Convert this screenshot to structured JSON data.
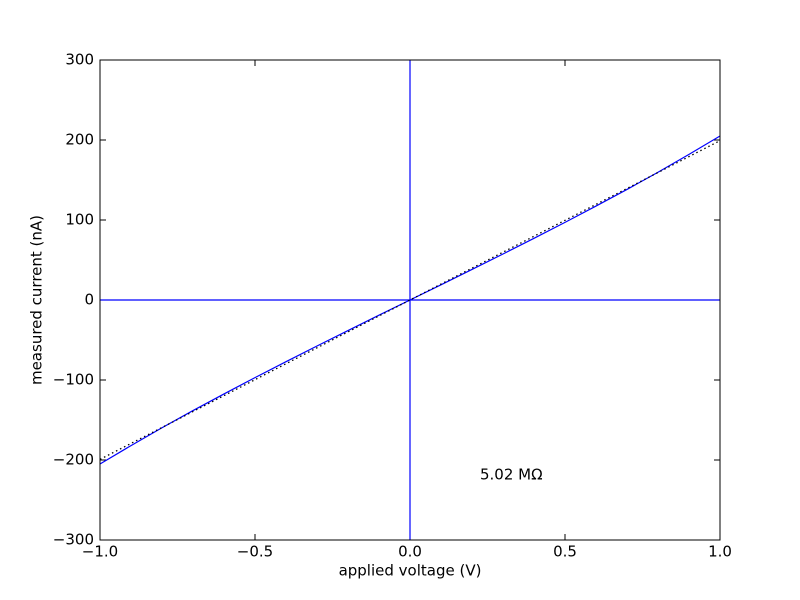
{
  "chart_data": {
    "type": "line",
    "x_label": "applied voltage (V)",
    "y_label": "measured current (nA)",
    "annotation": "5.02 MΩ",
    "xlim": [
      -1.0,
      1.0
    ],
    "ylim": [
      -300,
      300
    ],
    "xticks": [
      {
        "value": -1.0,
        "label": "−1.0"
      },
      {
        "value": -0.5,
        "label": "−0.5"
      },
      {
        "value": 0.0,
        "label": "0.0"
      },
      {
        "value": 0.5,
        "label": "0.5"
      },
      {
        "value": 1.0,
        "label": "1.0"
      }
    ],
    "yticks": [
      {
        "value": -300,
        "label": "−300"
      },
      {
        "value": -200,
        "label": "−200"
      },
      {
        "value": -100,
        "label": "−100"
      },
      0,
      100,
      200,
      300
    ],
    "grid": false,
    "reference_lines": {
      "x": [
        0
      ],
      "y": [
        0
      ],
      "color": "#0000ff"
    },
    "series": [
      {
        "color": "#0000ff",
        "dash": "solid",
        "x": [
          -1.0,
          -0.9,
          -0.8,
          -0.7,
          -0.6,
          -0.5,
          -0.4,
          -0.3,
          -0.2,
          -0.1,
          0.0,
          0.1,
          0.2,
          0.3,
          0.4,
          0.5,
          0.6,
          0.7,
          0.8,
          0.9,
          1.0
        ],
        "values": [
          -205,
          -182.0,
          -159.7,
          -138.2,
          -117.4,
          -97.0,
          -77.1,
          -57.5,
          -38.2,
          -19.0,
          0,
          19.0,
          38.2,
          57.5,
          77.1,
          97.0,
          117.4,
          138.2,
          159.7,
          182.0,
          205
        ]
      },
      {
        "color": "#000000",
        "dash": "dotted",
        "x": [
          -1.0,
          1.0
        ],
        "values": [
          -199.2,
          199.2
        ]
      }
    ]
  }
}
